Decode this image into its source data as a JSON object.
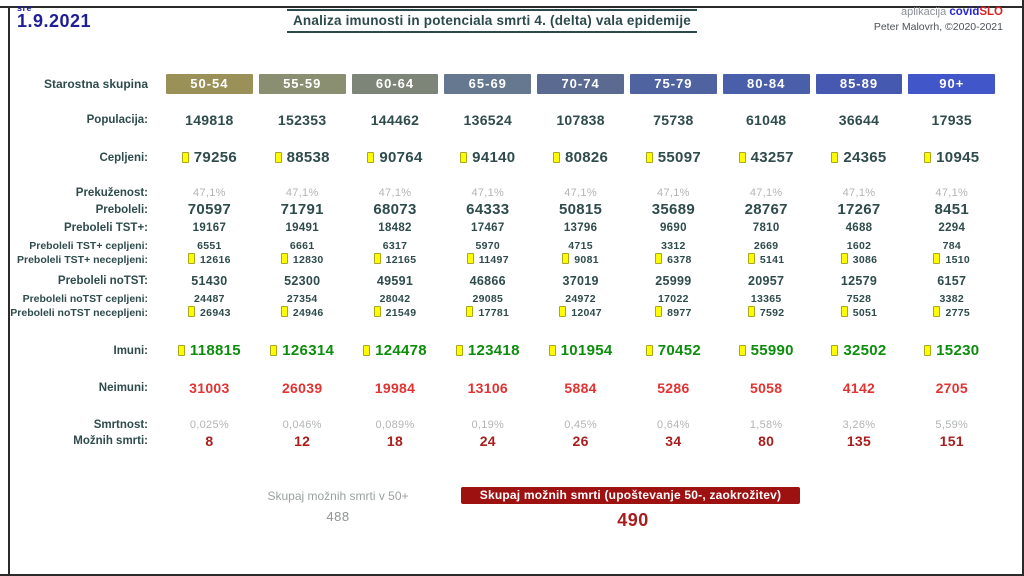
{
  "header": {
    "weekday": "sre",
    "date": "1.9.2021",
    "title": "Analiza imunosti in potenciala smrti 4. (delta) vala epidemije",
    "app_prefix": "aplikacija ",
    "app_name_covid": "covid",
    "app_name_slo": "SLO",
    "credits": "Peter Malovrh, ©2020-2021"
  },
  "table": {
    "row_header_label": "Starostna skupina",
    "age_groups": [
      {
        "label": "50-54",
        "color": "#9a9159"
      },
      {
        "label": "55-59",
        "color": "#8b8f71"
      },
      {
        "label": "60-64",
        "color": "#7d8478"
      },
      {
        "label": "65-69",
        "color": "#66788f"
      },
      {
        "label": "70-74",
        "color": "#5a6a90"
      },
      {
        "label": "75-79",
        "color": "#4f63a1"
      },
      {
        "label": "80-84",
        "color": "#4a5fa9"
      },
      {
        "label": "85-89",
        "color": "#4659b1"
      },
      {
        "label": "90+",
        "color": "#4156c8"
      }
    ],
    "rows": [
      {
        "key": "populacija",
        "label": "Populacija:",
        "icon": false,
        "values": [
          "149818",
          "152353",
          "144462",
          "136524",
          "107838",
          "75738",
          "61048",
          "36644",
          "17935"
        ]
      },
      {
        "key": "cepljeni",
        "label": "Cepljeni:",
        "icon": true,
        "values": [
          "79256",
          "88538",
          "90764",
          "94140",
          "80826",
          "55097",
          "43257",
          "24365",
          "10945"
        ]
      },
      {
        "key": "prekuzenost",
        "label": "Prekuženost:",
        "icon": false,
        "values": [
          "47,1%",
          "47,1%",
          "47,1%",
          "47,1%",
          "47,1%",
          "47,1%",
          "47,1%",
          "47,1%",
          "47,1%"
        ]
      },
      {
        "key": "preboleli",
        "label": "Preboleli:",
        "icon": false,
        "values": [
          "70597",
          "71791",
          "68073",
          "64333",
          "50815",
          "35689",
          "28767",
          "17267",
          "8451"
        ]
      },
      {
        "key": "preboleli-tst",
        "label": "Preboleli TST+:",
        "icon": false,
        "values": [
          "19167",
          "19491",
          "18482",
          "17467",
          "13796",
          "9690",
          "7810",
          "4688",
          "2294"
        ]
      },
      {
        "key": "preboleli-tst-cepljeni",
        "label": "Preboleli TST+ cepljeni:",
        "icon": false,
        "values": [
          "6551",
          "6661",
          "6317",
          "5970",
          "4715",
          "3312",
          "2669",
          "1602",
          "784"
        ]
      },
      {
        "key": "preboleli-tst-necepljeni",
        "label": "Preboleli TST+ necepljeni:",
        "icon": true,
        "values": [
          "12616",
          "12830",
          "12165",
          "11497",
          "9081",
          "6378",
          "5141",
          "3086",
          "1510"
        ]
      },
      {
        "key": "preboleli-notst",
        "label": "Preboleli noTST:",
        "icon": false,
        "values": [
          "51430",
          "52300",
          "49591",
          "46866",
          "37019",
          "25999",
          "20957",
          "12579",
          "6157"
        ]
      },
      {
        "key": "preboleli-notst-cepljeni",
        "label": "Preboleli noTST cepljeni:",
        "icon": false,
        "values": [
          "24487",
          "27354",
          "28042",
          "29085",
          "24972",
          "17022",
          "13365",
          "7528",
          "3382"
        ]
      },
      {
        "key": "preboleli-notst-necepljeni",
        "label": "Preboleli noTST necepljeni:",
        "icon": true,
        "values": [
          "26943",
          "24946",
          "21549",
          "17781",
          "12047",
          "8977",
          "7592",
          "5051",
          "2775"
        ]
      },
      {
        "key": "imuni",
        "label": "Imuni:",
        "icon": true,
        "values": [
          "118815",
          "126314",
          "124478",
          "123418",
          "101954",
          "70452",
          "55990",
          "32502",
          "15230"
        ]
      },
      {
        "key": "neimuni",
        "label": "Neimuni:",
        "icon": false,
        "values": [
          "31003",
          "26039",
          "19984",
          "13106",
          "5884",
          "5286",
          "5058",
          "4142",
          "2705"
        ]
      },
      {
        "key": "smrtnost",
        "label": "Smrtnost:",
        "icon": false,
        "values": [
          "0,025%",
          "0,046%",
          "0,089%",
          "0,19%",
          "0,45%",
          "0,64%",
          "1,58%",
          "3,26%",
          "5,59%"
        ]
      },
      {
        "key": "moznih-smrti",
        "label": "Možnih smrti:",
        "icon": false,
        "values": [
          "8",
          "12",
          "18",
          "24",
          "26",
          "34",
          "80",
          "135",
          "151"
        ]
      }
    ]
  },
  "footer": {
    "sum_label": "Skupaj možnih smrti v 50+",
    "sum_value": "488",
    "total_label": "Skupaj možnih smrti (upoštevanje 50-, zaokrožitev)",
    "total_value": "490"
  }
}
